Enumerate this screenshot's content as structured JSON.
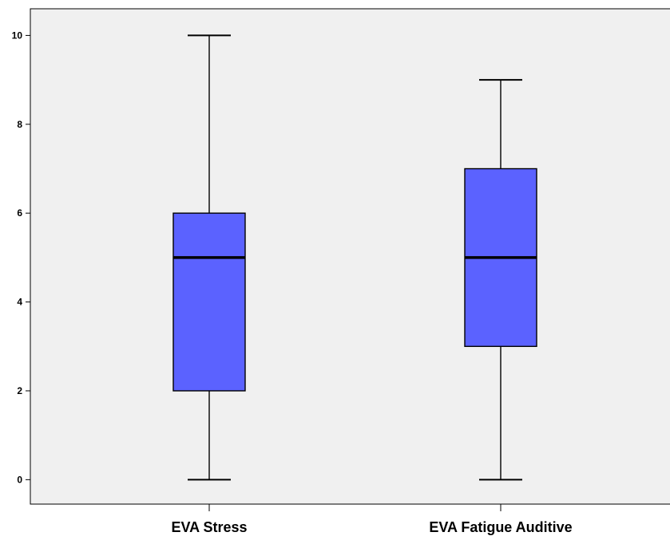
{
  "chart_data": {
    "type": "boxplot",
    "title": "",
    "xlabel": "",
    "ylabel": "",
    "ylim": [
      -0.55,
      10.6
    ],
    "yticks": [
      "0",
      "2",
      "4",
      "6",
      "8",
      "10"
    ],
    "categories": [
      "EVA Stress",
      "EVA Fatigue Auditive"
    ],
    "boxes": [
      {
        "min": 0,
        "q1": 2,
        "median": 5,
        "q3": 6,
        "max": 10
      },
      {
        "min": 0,
        "q1": 3,
        "median": 5,
        "q3": 7,
        "max": 9
      }
    ],
    "grid": false,
    "legend": "none"
  },
  "colors": {
    "plot_background": "#f0f0f0",
    "box_fill": "#5b62ff",
    "line": "#000000"
  }
}
